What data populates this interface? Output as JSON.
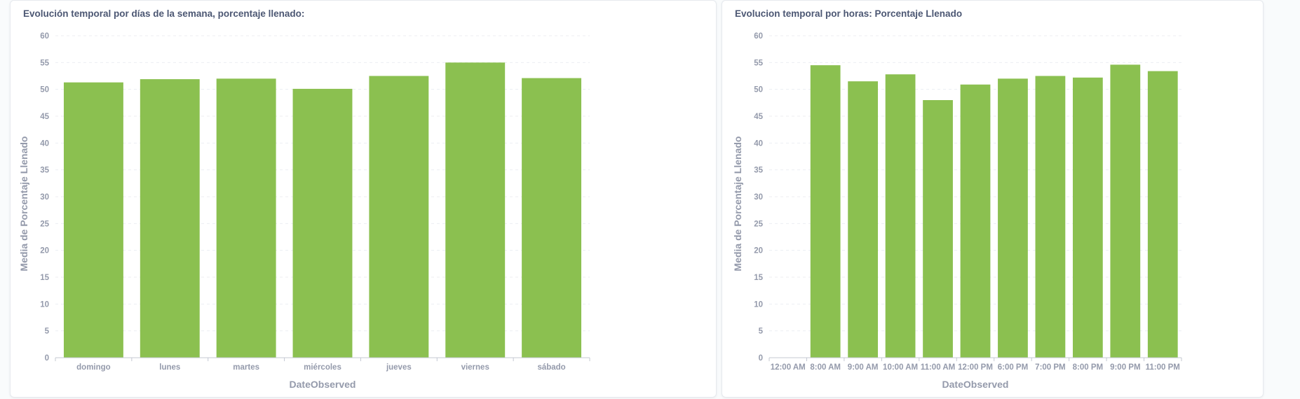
{
  "colors": {
    "bar": "#8bc050",
    "text": "#4c5773",
    "axis_text": "#949aab"
  },
  "chart_data": [
    {
      "type": "bar",
      "title": "Evolución temporal por días de la semana, porcentaje llenado:",
      "xlabel": "DateObserved",
      "ylabel": "Media de Porcentaje Llenado",
      "ylim": [
        0,
        60
      ],
      "yticks": [
        "0",
        "5",
        "10",
        "15",
        "20",
        "25",
        "30",
        "35",
        "40",
        "45",
        "50",
        "55",
        "60"
      ],
      "grid": true,
      "categories": [
        "domingo",
        "lunes",
        "martes",
        "miércoles",
        "jueves",
        "viernes",
        "sábado"
      ],
      "values": [
        51.3,
        51.9,
        52.0,
        50.1,
        52.5,
        55.0,
        52.1
      ]
    },
    {
      "type": "bar",
      "title": "Evolucion temporal por horas: Porcentaje Llenado",
      "xlabel": "DateObserved",
      "ylabel": "Media de Porcentaje Llenado",
      "ylim": [
        0,
        60
      ],
      "yticks": [
        "0",
        "5",
        "10",
        "15",
        "20",
        "25",
        "30",
        "35",
        "40",
        "45",
        "50",
        "55",
        "60"
      ],
      "grid": true,
      "categories": [
        "12:00 AM",
        "8:00 AM",
        "9:00 AM",
        "10:00 AM",
        "11:00 AM",
        "12:00 PM",
        "6:00 PM",
        "7:00 PM",
        "8:00 PM",
        "9:00 PM",
        "11:00 PM"
      ],
      "values": [
        0,
        54.5,
        51.5,
        52.8,
        48.0,
        50.9,
        52.0,
        52.5,
        52.2,
        54.6,
        53.4
      ]
    }
  ]
}
